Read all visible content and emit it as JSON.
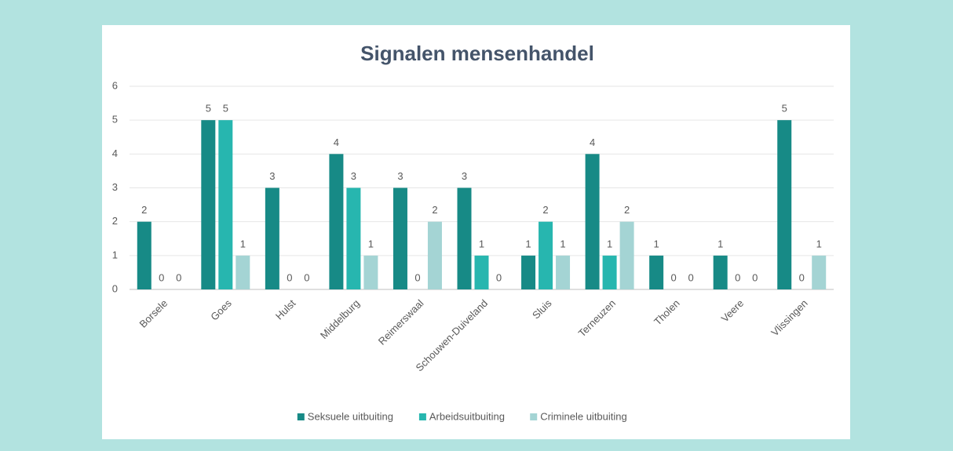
{
  "chart_data": {
    "type": "bar",
    "title": "Signalen mensenhandel",
    "categories": [
      "Borsele",
      "Goes",
      "Hulst",
      "Middelburg",
      "Reimerswaal",
      "Schouwen-Duiveland",
      "Sluis",
      "Terneuzen",
      "Tholen",
      "Veere",
      "Vlissingen"
    ],
    "series": [
      {
        "name": "Seksuele uitbuiting",
        "color": "#178a86",
        "values": [
          2,
          5,
          3,
          4,
          3,
          3,
          1,
          4,
          1,
          1,
          5
        ]
      },
      {
        "name": "Arbeidsuitbuiting",
        "color": "#27b6af",
        "values": [
          0,
          5,
          0,
          3,
          0,
          1,
          2,
          1,
          0,
          0,
          0
        ]
      },
      {
        "name": "Criminele uitbuiting",
        "color": "#a4d4d4",
        "values": [
          0,
          1,
          0,
          1,
          2,
          0,
          1,
          2,
          0,
          0,
          1
        ]
      }
    ],
    "ylim": [
      0,
      6
    ],
    "yticks": [
      0,
      1,
      2,
      3,
      4,
      5,
      6
    ],
    "grid": true,
    "legend": "bottom"
  }
}
